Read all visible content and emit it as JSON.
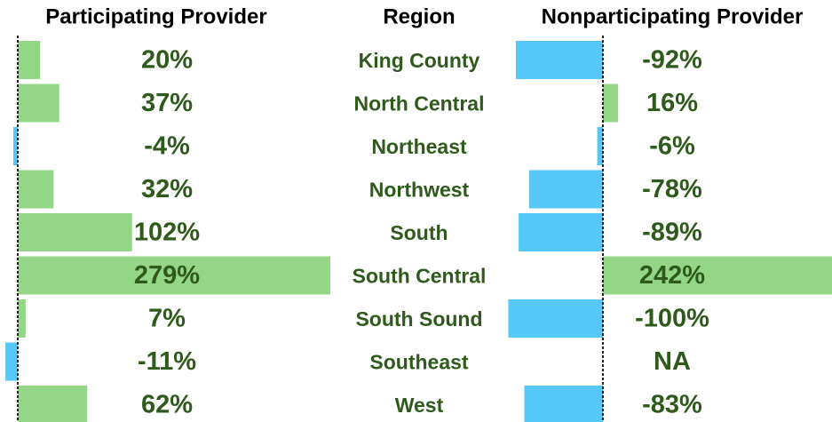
{
  "chart_data": {
    "type": "diverging-bar-table",
    "category_header": "Region",
    "categories": [
      "King County",
      "North Central",
      "Northeast",
      "Northwest",
      "South",
      "South Central",
      "South Sound",
      "Southeast",
      "West"
    ],
    "positive_color": "#93d686",
    "negative_color": "#55c8f8",
    "series": [
      {
        "name": "Participating Provider",
        "values": [
          20,
          37,
          -4,
          32,
          102,
          279,
          7,
          -11,
          62
        ],
        "value_labels": [
          "20%",
          "37%",
          "-4%",
          "32%",
          "102%",
          "279%",
          "7%",
          "-11%",
          "62%"
        ]
      },
      {
        "name": "Nonparticipating Provider",
        "values": [
          -92,
          16,
          -6,
          -78,
          -89,
          242,
          -100,
          null,
          -83
        ],
        "value_labels": [
          "-92%",
          "16%",
          "-6%",
          "-78%",
          "-89%",
          "242%",
          "-100%",
          "NA",
          "-83%"
        ]
      }
    ]
  }
}
